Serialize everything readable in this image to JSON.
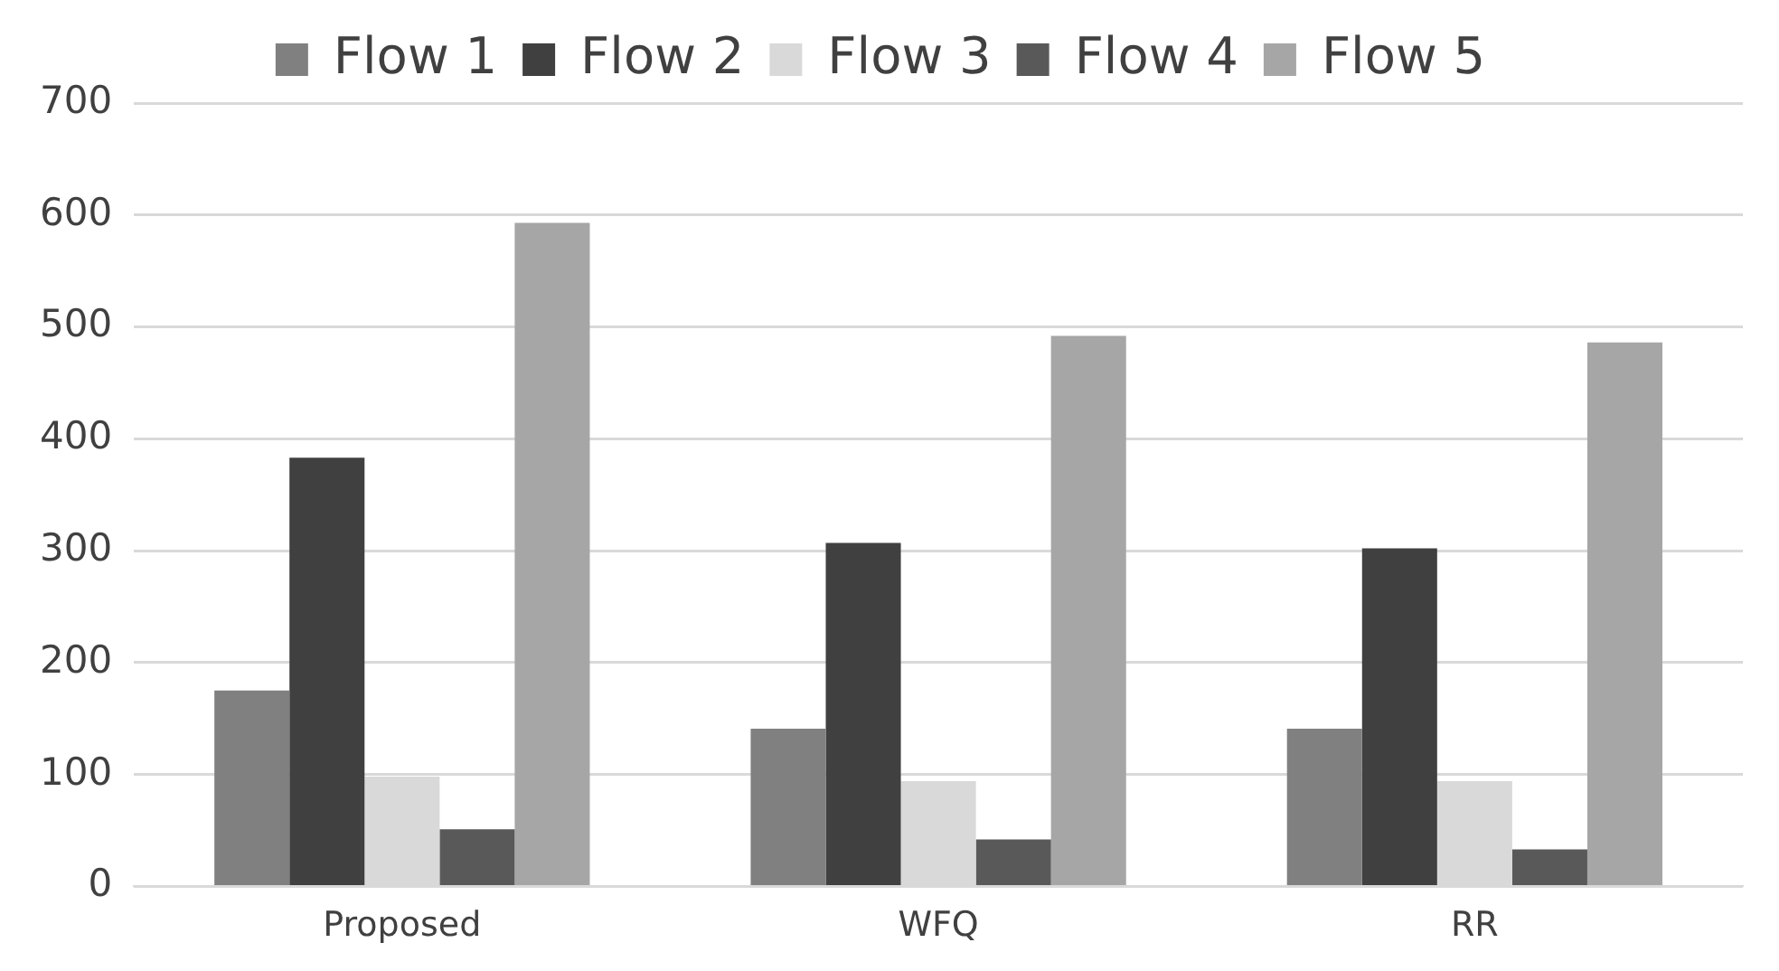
{
  "chart_data": {
    "type": "bar",
    "categories": [
      "Proposed",
      "WFQ",
      "RR"
    ],
    "series": [
      {
        "name": "Flow 1",
        "color": "#808080",
        "values": [
          175,
          141,
          141
        ]
      },
      {
        "name": "Flow 2",
        "color": "#404040",
        "values": [
          383,
          307,
          302
        ]
      },
      {
        "name": "Flow 3",
        "color": "#d9d9d9",
        "values": [
          98,
          94,
          94
        ]
      },
      {
        "name": "Flow 4",
        "color": "#595959",
        "values": [
          51,
          42,
          33
        ]
      },
      {
        "name": "Flow 5",
        "color": "#a6a6a6",
        "values": [
          593,
          492,
          486
        ]
      }
    ],
    "ylim": [
      0,
      700
    ],
    "yticks": [
      0,
      100,
      200,
      300,
      400,
      500,
      600,
      700
    ],
    "grid": "y",
    "legend": "top"
  }
}
